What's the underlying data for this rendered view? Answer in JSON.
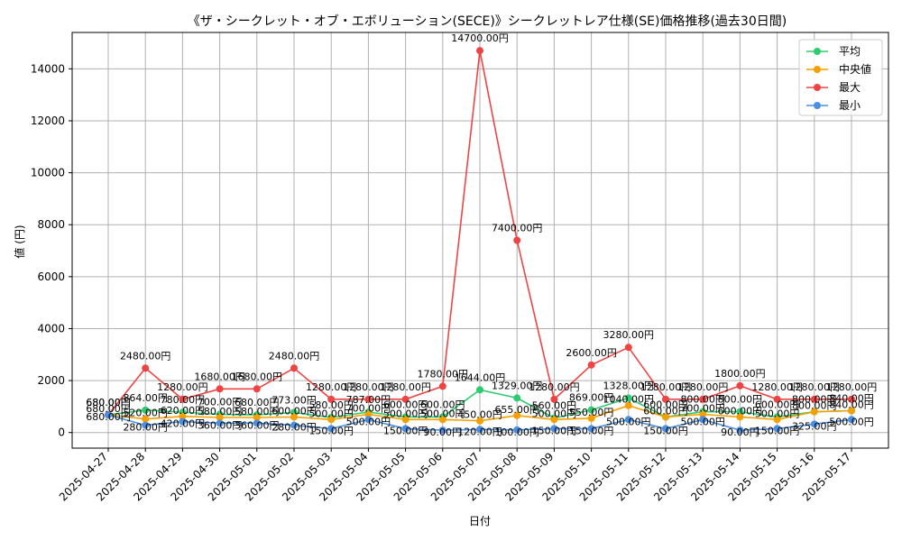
{
  "chart_data": {
    "type": "line",
    "title": "《ザ・シークレット・オブ・エボリューション(SECE)》シークレットレア仕様(SE)価格推移(過去30日間)",
    "xlabel": "日付",
    "ylabel": "値 (円)",
    "value_suffix": "円",
    "ylim": [
      -600,
      15400
    ],
    "yticks": [
      0,
      2000,
      4000,
      6000,
      8000,
      10000,
      12000,
      14000
    ],
    "grid": true,
    "legend_position": "top-right",
    "categories": [
      "2025-04-27",
      "2025-04-28",
      "2025-04-29",
      "2025-04-30",
      "2025-05-01",
      "2025-05-02",
      "2025-05-03",
      "2025-05-04",
      "2025-05-05",
      "2025-05-06",
      "2025-05-07",
      "2025-05-08",
      "2025-05-09",
      "2025-05-10",
      "2025-05-11",
      "2025-05-12",
      "2025-05-13",
      "2025-05-14",
      "2025-05-15",
      "2025-05-16",
      "2025-05-17"
    ],
    "series": [
      {
        "name": "平均",
        "color": "#2ecc71",
        "values": [
          680,
          864,
          780,
          700,
          680,
          773,
          580,
          787,
          600,
          600,
          1644,
          1329,
          560,
          869,
          1328,
          600,
          800,
          800,
          600,
          800,
          840
        ]
      },
      {
        "name": "中央値",
        "color": "#f5a000",
        "values": [
          680,
          520,
          620,
          580,
          580,
          600,
          500,
          700,
          500,
          500,
          450,
          655,
          500,
          550,
          1040,
          600,
          700,
          600,
          500,
          800,
          840
        ]
      },
      {
        "name": "最大",
        "color": "#ef4444",
        "values": [
          680,
          2480,
          1280,
          1680,
          1680,
          2480,
          1280,
          1280,
          1280,
          1780,
          14700,
          7400,
          1280,
          2600,
          3280,
          1280,
          1280,
          1800,
          1280,
          1280,
          1280
        ]
      },
      {
        "name": "最小",
        "color": "#4a90e2",
        "values": [
          680,
          280,
          420,
          360,
          360,
          280,
          150,
          500,
          150,
          90,
          120,
          100,
          150,
          150,
          500,
          150,
          500,
          90,
          150,
          325,
          500
        ]
      }
    ]
  }
}
